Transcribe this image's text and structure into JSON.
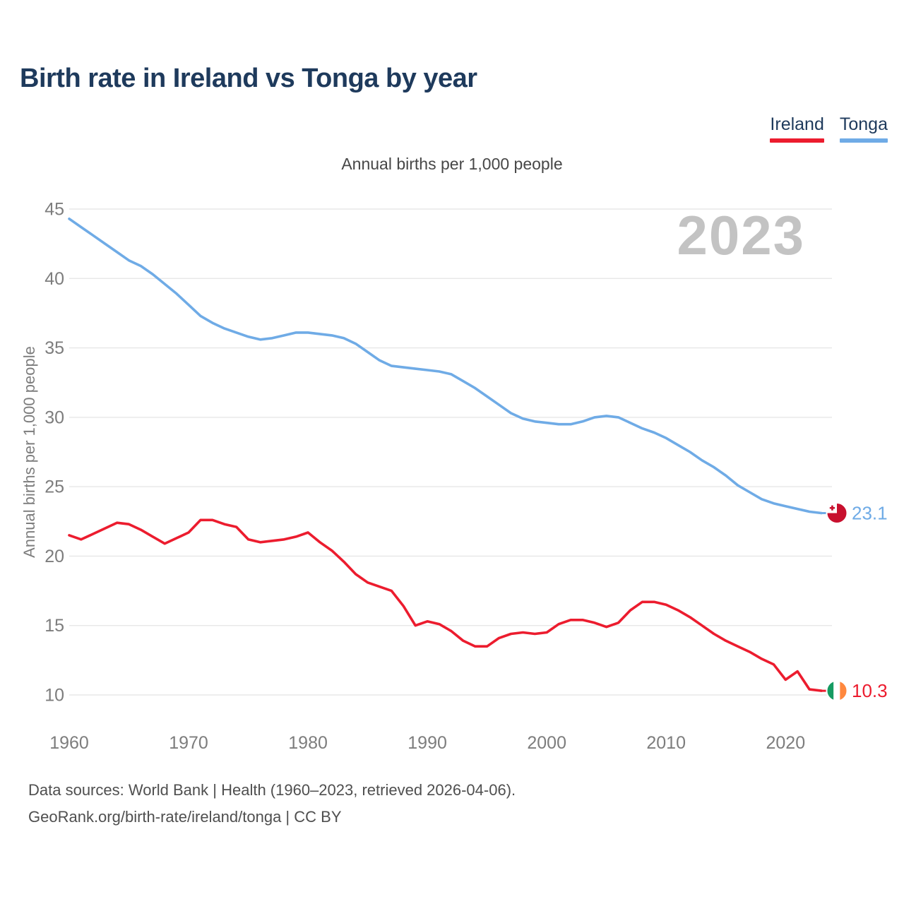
{
  "header": {
    "title": "Birth rate in Ireland vs Tonga by year"
  },
  "legend": [
    {
      "label": "Ireland",
      "color": "#ec1c2e"
    },
    {
      "label": "Tonga",
      "color": "#6fabe6"
    }
  ],
  "subtitle": "Annual births per 1,000 people",
  "watermark": "2023",
  "y_axis": {
    "label": "Annual births per 1,000 people",
    "ticks": [
      45,
      40,
      35,
      30,
      25,
      20,
      15,
      10
    ]
  },
  "x_axis": {
    "ticks": [
      1960,
      1970,
      1980,
      1990,
      2000,
      2010,
      2020
    ]
  },
  "chart_data": {
    "type": "line",
    "title": "Birth rate in Ireland vs Tonga by year",
    "subtitle": "Annual births per 1,000 people",
    "ylabel": "Annual births per 1,000 people",
    "xlabel": "",
    "x_start": 1960,
    "x_end": 2023,
    "ylim": [
      8.5,
      46
    ],
    "grid": "horizontal",
    "legend_position": "top-right",
    "x": [
      1960,
      1961,
      1962,
      1963,
      1964,
      1965,
      1966,
      1967,
      1968,
      1969,
      1970,
      1971,
      1972,
      1973,
      1974,
      1975,
      1976,
      1977,
      1978,
      1979,
      1980,
      1981,
      1982,
      1983,
      1984,
      1985,
      1986,
      1987,
      1988,
      1989,
      1990,
      1991,
      1992,
      1993,
      1994,
      1995,
      1996,
      1997,
      1998,
      1999,
      2000,
      2001,
      2002,
      2003,
      2004,
      2005,
      2006,
      2007,
      2008,
      2009,
      2010,
      2011,
      2012,
      2013,
      2014,
      2015,
      2016,
      2017,
      2018,
      2019,
      2020,
      2021,
      2022,
      2023
    ],
    "series": [
      {
        "name": "Tonga",
        "color": "#6fabe6",
        "end_label": "23.1",
        "flag": "tonga",
        "values": [
          44.3,
          43.7,
          43.1,
          42.5,
          41.9,
          41.3,
          40.9,
          40.3,
          39.6,
          38.9,
          38.1,
          37.3,
          36.8,
          36.4,
          36.1,
          35.8,
          35.6,
          35.7,
          35.9,
          36.1,
          36.1,
          36.0,
          35.9,
          35.7,
          35.3,
          34.7,
          34.1,
          33.7,
          33.6,
          33.5,
          33.4,
          33.3,
          33.1,
          32.6,
          32.1,
          31.5,
          30.9,
          30.3,
          29.9,
          29.7,
          29.6,
          29.5,
          29.5,
          29.7,
          30.0,
          30.1,
          30.0,
          29.6,
          29.2,
          28.9,
          28.5,
          28.0,
          27.5,
          26.9,
          26.4,
          25.8,
          25.1,
          24.6,
          24.1,
          23.8,
          23.6,
          23.4,
          23.2,
          23.1
        ]
      },
      {
        "name": "Ireland",
        "color": "#ec1c2e",
        "end_label": "10.3",
        "flag": "ireland",
        "values": [
          21.5,
          21.2,
          21.6,
          22.0,
          22.4,
          22.3,
          21.9,
          21.4,
          20.9,
          21.3,
          21.7,
          22.6,
          22.6,
          22.3,
          22.1,
          21.2,
          21.0,
          21.1,
          21.2,
          21.4,
          21.7,
          21.0,
          20.4,
          19.6,
          18.7,
          18.1,
          17.8,
          17.5,
          16.4,
          15.0,
          15.3,
          15.1,
          14.6,
          13.9,
          13.5,
          13.5,
          14.1,
          14.4,
          14.5,
          14.4,
          14.5,
          15.1,
          15.4,
          15.4,
          15.2,
          14.9,
          15.2,
          16.1,
          16.7,
          16.7,
          16.5,
          16.1,
          15.6,
          15.0,
          14.4,
          13.9,
          13.5,
          13.1,
          12.6,
          12.2,
          11.1,
          11.7,
          10.4,
          10.3
        ]
      }
    ]
  },
  "flag_colors": {
    "tonga_red": "#c8102e",
    "tonga_white": "#ffffff",
    "ireland_green": "#169b62",
    "ireland_white": "#ffffff",
    "ireland_orange": "#ff883e"
  },
  "footer": {
    "line1": "Data sources: World Bank | Health (1960–2023, retrieved 2026-04-06).",
    "line2": "GeoRank.org/birth-rate/ireland/tonga | CC BY"
  }
}
